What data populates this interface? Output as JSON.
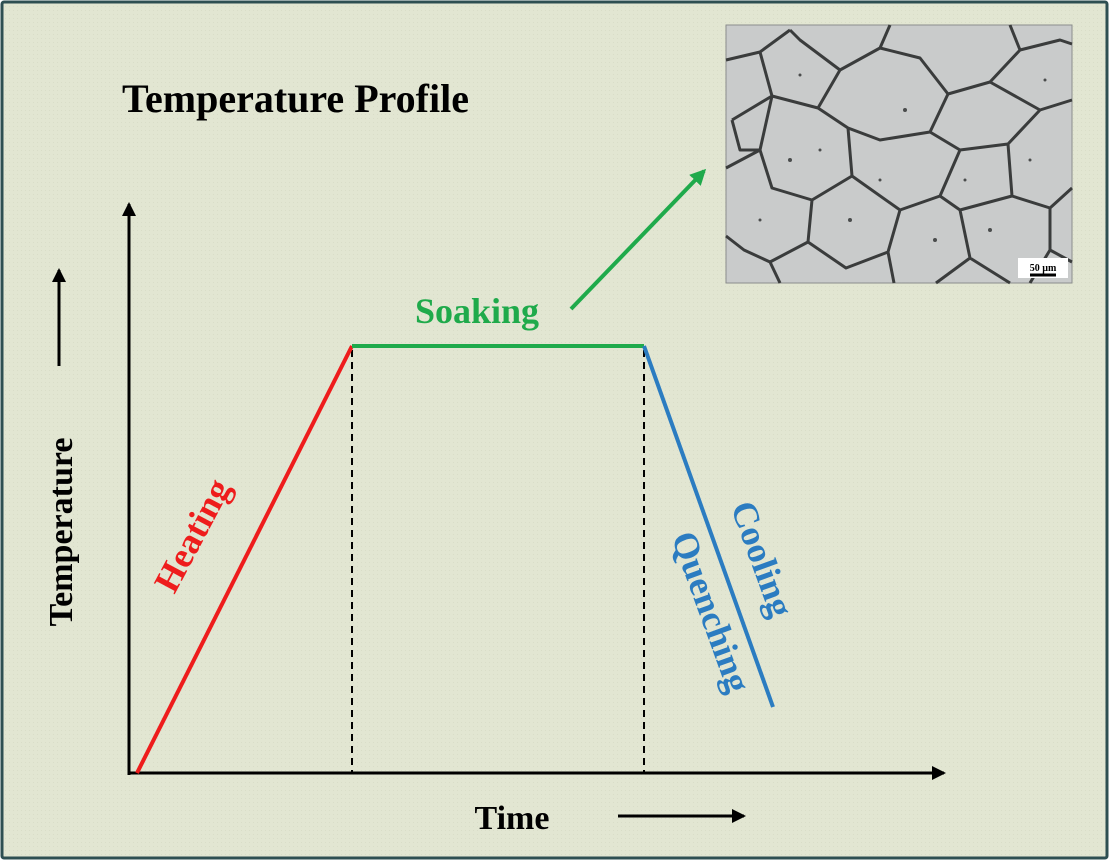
{
  "title": "Temperature Profile",
  "axes": {
    "x_label": "Time",
    "y_label": "Temperature"
  },
  "stages": {
    "heating": "Heating",
    "soaking": "Soaking",
    "cooling": "Cooling",
    "quenching": "Quenching"
  },
  "micrograph": {
    "scale_bar_label": "50 µm"
  },
  "colors": {
    "background": "#e2e6d2",
    "frame": "#2e4f52",
    "heating": "#ee1c1c",
    "soaking": "#1faa4b",
    "cooling": "#2b7cc1",
    "axis": "#000000"
  }
}
